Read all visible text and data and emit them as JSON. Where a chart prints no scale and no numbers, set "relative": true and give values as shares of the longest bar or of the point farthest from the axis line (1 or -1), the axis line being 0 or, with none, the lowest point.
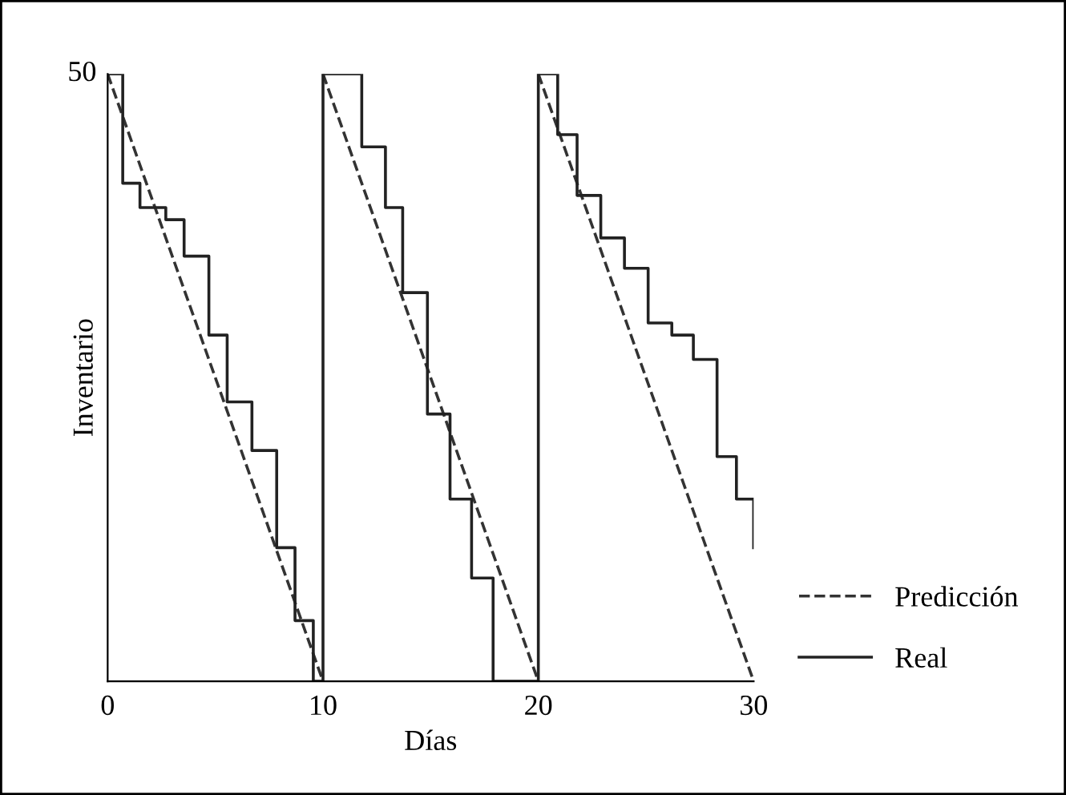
{
  "chart_data": {
    "type": "line",
    "relative": true,
    "xlabel": "Días",
    "ylabel": "Inventario",
    "xlim": [
      0,
      30
    ],
    "xticks": [
      0,
      10,
      20,
      30
    ],
    "annotations": [
      {
        "text": "50",
        "x": 0,
        "y": 1
      }
    ],
    "legend": "bottom right",
    "grid": false,
    "series": [
      {
        "name": "Predicción",
        "line_style": "dashed",
        "color": "#333333",
        "x": [
          0,
          10,
          10,
          20,
          20,
          30
        ],
        "values": [
          1,
          0,
          1,
          0,
          1,
          0
        ]
      },
      {
        "name": "Real",
        "type": "step",
        "line_style": "solid",
        "color": "#222222",
        "x": [
          0,
          0.7,
          1.5,
          2.7,
          3.55,
          4.7,
          5.55,
          6.7,
          7.85,
          8.7,
          9.55,
          10,
          11.8,
          12.9,
          13.7,
          14.85,
          15.9,
          16.9,
          17.9,
          20,
          20.9,
          21.8,
          22.9,
          24,
          25.1,
          26.2,
          27.2,
          28.3,
          29.2,
          30
        ],
        "values": [
          1,
          0.82,
          0.78,
          0.76,
          0.7,
          0.57,
          0.46,
          0.38,
          0.22,
          0.1,
          0,
          1,
          0.88,
          0.78,
          0.64,
          0.44,
          0.3,
          0.17,
          0,
          1,
          0.9,
          0.8,
          0.73,
          0.68,
          0.59,
          0.57,
          0.53,
          0.37,
          0.3,
          0.22
        ]
      }
    ]
  }
}
